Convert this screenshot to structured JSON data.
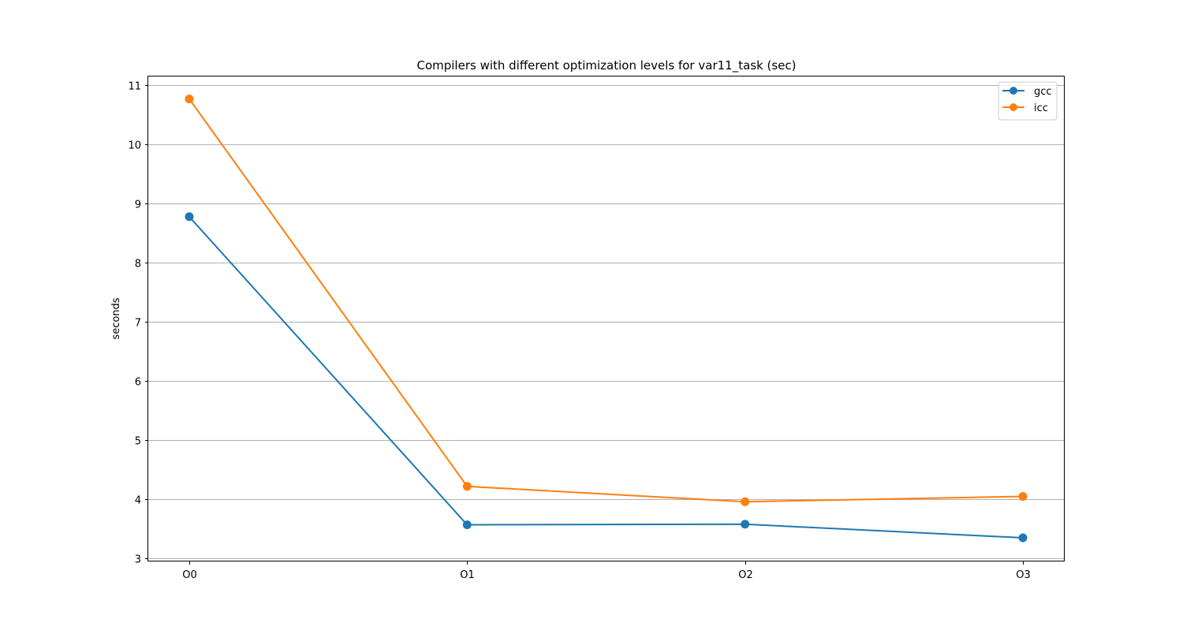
{
  "chart_data": {
    "type": "line",
    "title": "Compilers with different optimization levels for var11_task (sec)",
    "xlabel": "",
    "ylabel": "seconds",
    "categories": [
      "O0",
      "O1",
      "O2",
      "O3"
    ],
    "ylim": [
      2.95,
      11.15
    ],
    "yticks": [
      3,
      4,
      5,
      6,
      7,
      8,
      9,
      10,
      11
    ],
    "grid": "horizontal",
    "legend_position": "upper right",
    "series": [
      {
        "name": "gcc",
        "color": "#1f77b4",
        "marker": "circle",
        "values": [
          8.78,
          3.57,
          3.58,
          3.35
        ]
      },
      {
        "name": "icc",
        "color": "#ff7f0e",
        "marker": "circle",
        "values": [
          10.77,
          4.22,
          3.96,
          4.05
        ]
      }
    ]
  }
}
